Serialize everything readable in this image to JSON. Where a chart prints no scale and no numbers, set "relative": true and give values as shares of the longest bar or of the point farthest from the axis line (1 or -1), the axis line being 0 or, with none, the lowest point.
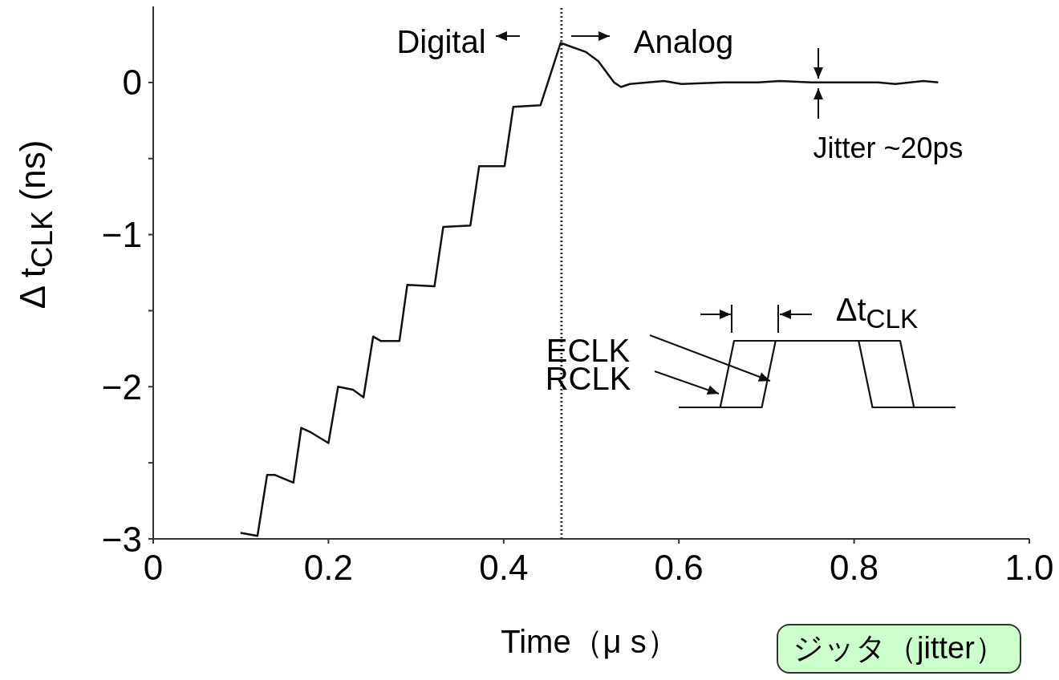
{
  "chart_data": [
    {
      "type": "line",
      "xlabel": "Time（μ s）",
      "ylabel": "Δ t$_{CLK}$ (ns)",
      "x": [
        0.0996,
        0.119,
        0.13,
        0.139,
        0.16,
        0.169,
        0.18,
        0.2,
        0.211,
        0.228,
        0.24,
        0.251,
        0.26,
        0.281,
        0.29,
        0.321,
        0.331,
        0.362,
        0.372,
        0.401,
        0.411,
        0.442,
        0.465,
        0.494,
        0.508,
        0.526,
        0.534,
        0.544,
        0.583,
        0.603,
        0.651,
        0.691,
        0.715,
        0.751,
        0.791,
        0.827,
        0.847,
        0.879,
        0.896
      ],
      "values": [
        -2.96,
        -2.98,
        -2.58,
        -2.58,
        -2.63,
        -2.27,
        -2.3,
        -2.37,
        -2.0,
        -2.02,
        -2.07,
        -1.67,
        -1.7,
        -1.7,
        -1.33,
        -1.34,
        -0.95,
        -0.94,
        -0.55,
        -0.55,
        -0.16,
        -0.15,
        0.26,
        0.2,
        0.14,
        0.0,
        -0.03,
        -0.01,
        0.01,
        -0.01,
        0.0,
        0.0,
        0.01,
        0.0,
        0.0,
        0.0,
        -0.01,
        0.01,
        0.0
      ],
      "color": "#111111",
      "xlim": [
        0,
        1
      ],
      "ylim": [
        -3,
        0.5
      ],
      "xticks": [
        0,
        0.2,
        0.4,
        0.6,
        0.8,
        {
          "value": 1,
          "label": "1.0"
        }
      ],
      "yticks": [
        -3,
        {
          "value": -2.5,
          "label": null
        },
        -2,
        {
          "value": -1.5,
          "label": null
        },
        -1,
        {
          "value": -0.5,
          "label": null
        },
        0
      ],
      "ref_lines": [
        {
          "axis": "x",
          "value": 0.466,
          "line_style": "dotted",
          "color": "#333333"
        }
      ],
      "annotations": [
        "Digital",
        "Analog",
        "Jitter ~20ps",
        "ジッタ（jitter）"
      ],
      "grid": false,
      "legend": false
    },
    {
      "type": "line",
      "relative": true,
      "categories": [
        null,
        null,
        null,
        null,
        null,
        null,
        null,
        null,
        null,
        null,
        null,
        null,
        null,
        null,
        null,
        null,
        null,
        null,
        null,
        null,
        null
      ],
      "series": [
        {
          "name": "ECLK",
          "color": "#111111",
          "values": [
            null,
            null,
            null,
            0,
            0,
            0,
            0,
            1,
            1,
            1,
            1,
            1,
            1,
            1,
            1,
            1,
            1,
            0,
            0,
            0,
            0
          ]
        },
        {
          "name": "RCLK",
          "color": "#111111",
          "values": [
            0,
            0,
            0,
            0,
            1,
            1,
            1,
            1,
            1,
            1,
            1,
            1,
            1,
            1,
            0,
            0,
            0,
            0,
            null,
            null,
            null
          ]
        }
      ],
      "annotations": [
        "Δt$_{CLK}$"
      ],
      "legend": "left"
    }
  ]
}
